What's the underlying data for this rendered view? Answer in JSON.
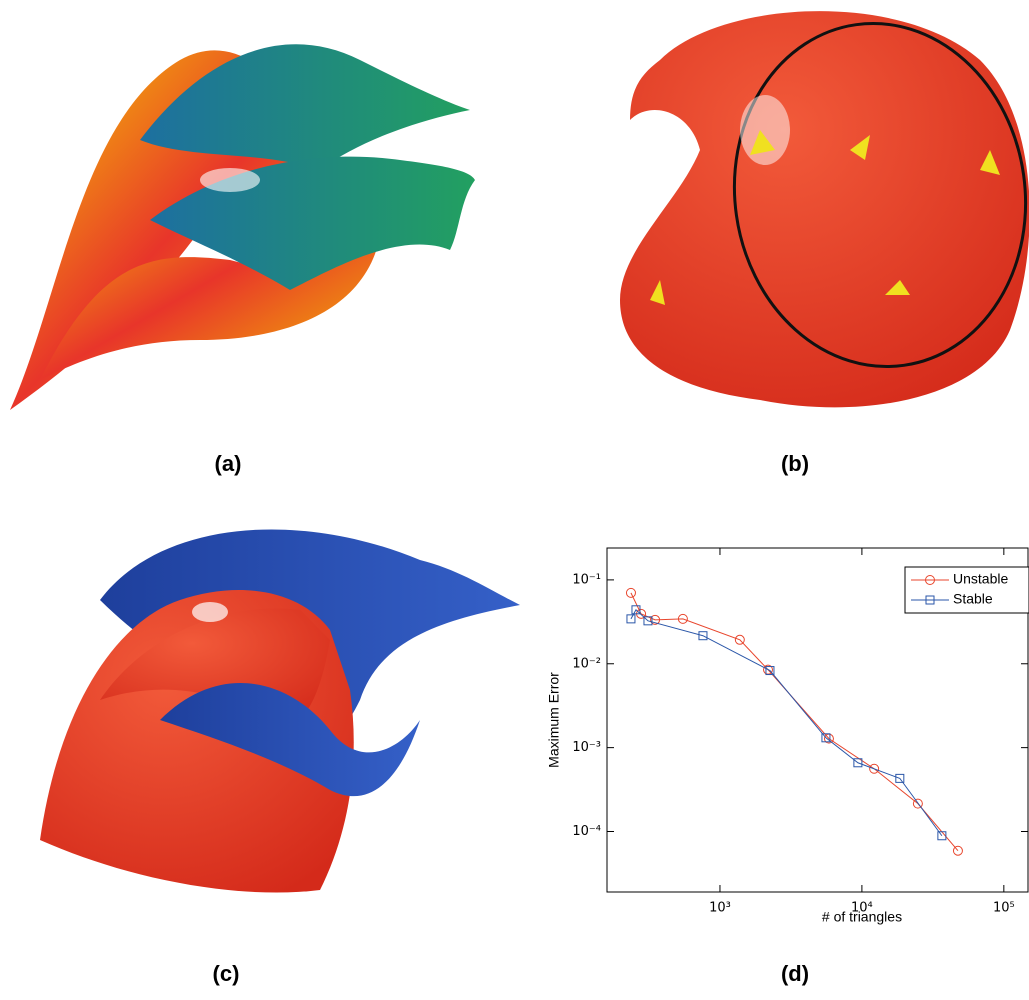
{
  "panel_labels": [
    "(a)",
    "(b)",
    "(c)",
    "(d)"
  ],
  "chart_data": {
    "type": "line",
    "x_label": "# of triangles",
    "y_label": "Maximum Error",
    "xlog": true,
    "ylog": true,
    "xlim": [
      160,
      148000
    ],
    "ylim": [
      1.9e-05,
      0.24
    ],
    "xticks": [
      {
        "value": 1000,
        "label": "10³"
      },
      {
        "value": 10000,
        "label": "10⁴"
      },
      {
        "value": 100000,
        "label": "10⁵"
      }
    ],
    "yticks": [
      {
        "value": 0.0001,
        "label": "10⁻⁴"
      },
      {
        "value": 0.001,
        "label": "10⁻³"
      },
      {
        "value": 0.01,
        "label": "10⁻²"
      },
      {
        "value": 0.1,
        "label": "10⁻¹"
      }
    ],
    "legend": "upper right",
    "series": [
      {
        "name": "Unstable",
        "color": "#e8452c",
        "marker": "circle",
        "x": [
          236,
          278,
          349,
          548,
          1380,
          2180,
          5860,
          12200,
          24800,
          47500
        ],
        "values": [
          0.07,
          0.0394,
          0.0334,
          0.0343,
          0.0193,
          0.0085,
          0.00128,
          0.00056,
          0.000215,
          5.9e-05
        ]
      },
      {
        "name": "Stable",
        "color": "#2a56a8",
        "marker": "square",
        "x": [
          236,
          256,
          311,
          759,
          2250,
          5580,
          9370,
          18500,
          36600
        ],
        "values": [
          0.0343,
          0.044,
          0.0325,
          0.0216,
          0.0083,
          0.00131,
          0.00066,
          0.00043,
          8.9e-05
        ]
      }
    ]
  }
}
